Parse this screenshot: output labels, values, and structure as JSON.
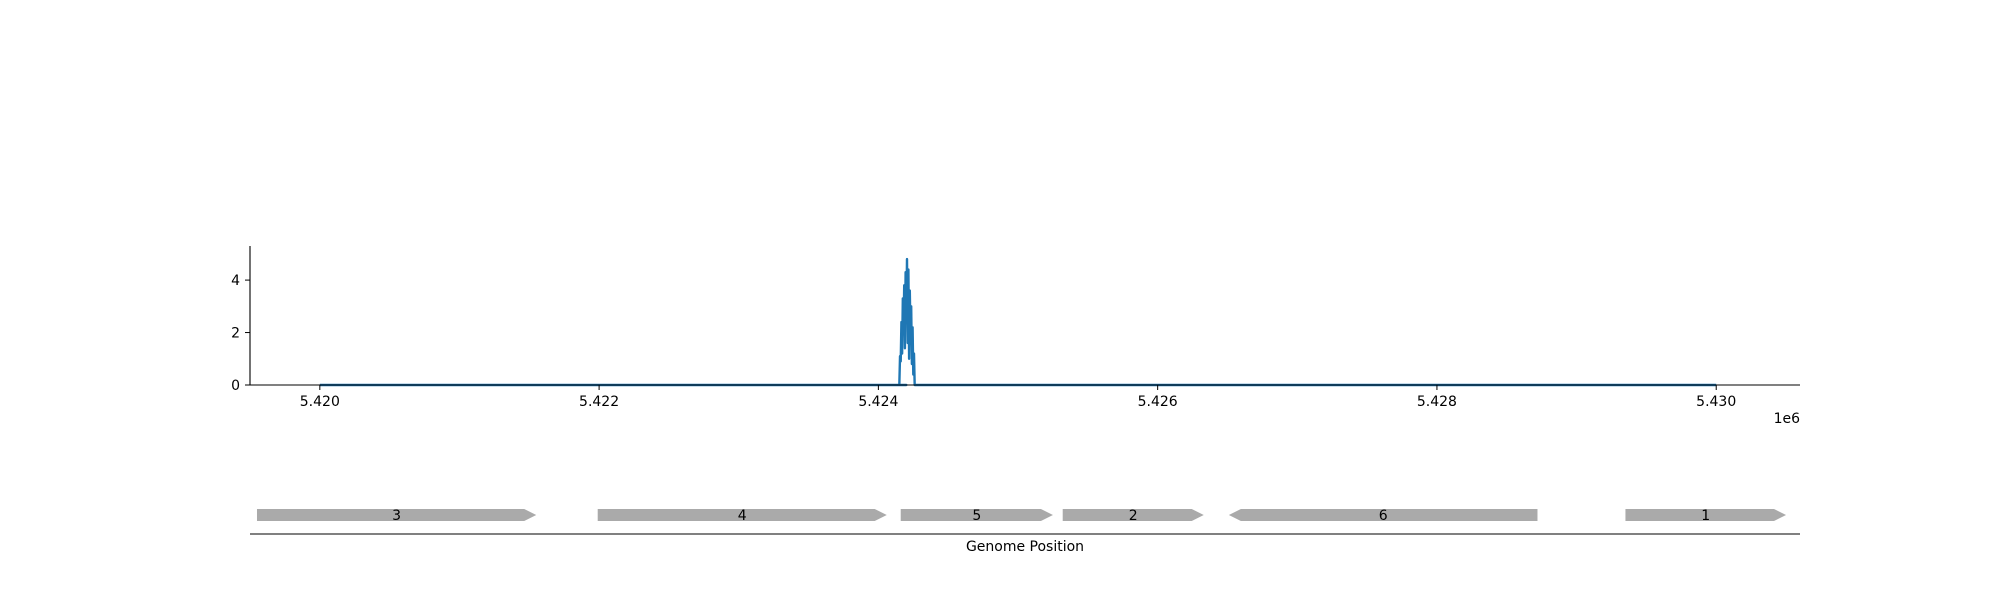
{
  "chart_data": [
    {
      "type": "line",
      "title": "",
      "xlabel": "",
      "ylabel": "",
      "x_offset_label": "1e6",
      "xlim": [
        5.4195,
        5.4306
      ],
      "ylim": [
        0,
        5.3
      ],
      "x_ticks": [
        5.42,
        5.422,
        5.424,
        5.426,
        5.428,
        5.43
      ],
      "x_tick_labels": [
        "5.420",
        "5.422",
        "5.424",
        "5.426",
        "5.428",
        "5.430"
      ],
      "y_ticks": [
        0,
        2,
        4
      ],
      "y_tick_labels": [
        "0",
        "2",
        "4"
      ],
      "grid": false,
      "color": "#1f77b4",
      "series": [
        {
          "x": [
            5.42,
            5.4242,
            5.42415,
            5.424155,
            5.42416,
            5.424165,
            5.42417,
            5.424175,
            5.42418,
            5.424185,
            5.42419,
            5.424195,
            5.4242,
            5.424205,
            5.42421,
            5.424215,
            5.42422,
            5.424225,
            5.42423,
            5.424235,
            5.42424,
            5.424245,
            5.42425,
            5.424255,
            5.42426,
            5.42427,
            5.43
          ],
          "y": [
            0,
            0,
            0,
            1.1,
            0.9,
            2.4,
            1.2,
            3.3,
            2.0,
            3.8,
            1.4,
            4.3,
            2.6,
            4.8,
            1.6,
            4.4,
            1.0,
            3.6,
            1.9,
            3.0,
            0.8,
            2.2,
            0.4,
            1.2,
            0,
            0,
            0
          ]
        }
      ]
    },
    {
      "type": "gene_track",
      "xlabel": "Genome Position",
      "genes": [
        {
          "label": "3",
          "start": 5.41955,
          "end": 5.42155,
          "strand": "+"
        },
        {
          "label": "4",
          "start": 5.42199,
          "end": 5.42406,
          "strand": "+"
        },
        {
          "label": "5",
          "start": 5.42416,
          "end": 5.42525,
          "strand": "+"
        },
        {
          "label": "2",
          "start": 5.42532,
          "end": 5.42633,
          "strand": "+"
        },
        {
          "label": "6",
          "start": 5.42651,
          "end": 5.42872,
          "strand": "-"
        },
        {
          "label": "1",
          "start": 5.42935,
          "end": 5.4305,
          "strand": "+"
        }
      ],
      "color": "#aaaaaa"
    }
  ]
}
